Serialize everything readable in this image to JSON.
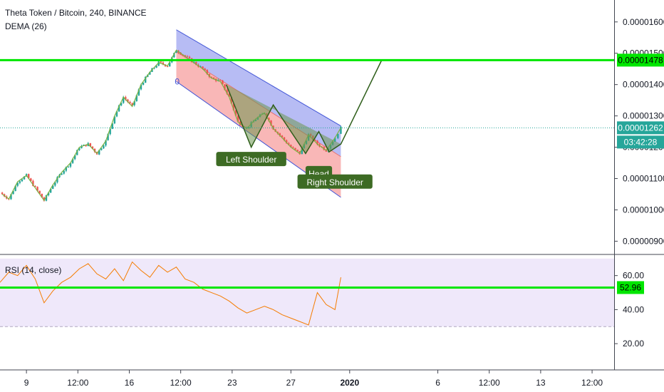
{
  "header": {
    "title": "Theta Token / Bitcoin, 240, BINANCE",
    "indicator": "DEMA (26)",
    "rsi_label": "RSI (14, close)"
  },
  "colors": {
    "up": "#26a69a",
    "down": "#ef5350",
    "dema": "#7cb342",
    "level_line": "#00e600",
    "channel_upper": "#4054d6",
    "channel_upper_fill": "rgba(96,106,230,0.45)",
    "channel_lower_fill": "rgba(242,96,96,0.45)",
    "pattern_fill": "rgba(110,150,80,0.55)",
    "pattern_line": "#2e5e1a",
    "rsi_line": "#f57c00",
    "rsi_band": "rgba(210,190,240,0.35)",
    "label_bg": "#3d6b24"
  },
  "chart_data": [
    {
      "type": "candlestick",
      "title": "Theta Token / Bitcoin, 240, BINANCE",
      "y_tick_labels": [
        "0.00001600",
        "0.00001500",
        "0.00001400",
        "0.00001300",
        "0.00001200",
        "0.00001100",
        "0.00001000",
        "0.00000900"
      ],
      "ylim": [
        8.6e-06,
        1.67e-05
      ],
      "x_tick_labels": [
        "9",
        "12:00",
        "16",
        "12:00",
        "23",
        "27",
        "2020",
        "6",
        "12:00",
        "13",
        "12:00"
      ],
      "x_tick_days": [
        9,
        12.5,
        16,
        19.5,
        23,
        27,
        31,
        37,
        40.5,
        44,
        47.5
      ],
      "xlim": [
        7.2,
        49
      ],
      "price_path": [
        {
          "day": 7.2,
          "price": 1.055e-05
        },
        {
          "day": 7.8,
          "price": 1.035e-05
        },
        {
          "day": 8.4,
          "price": 1.09e-05
        },
        {
          "day": 9.0,
          "price": 1.11e-05
        },
        {
          "day": 9.6,
          "price": 1.07e-05
        },
        {
          "day": 10.2,
          "price": 1.03e-05
        },
        {
          "day": 10.8,
          "price": 1.08e-05
        },
        {
          "day": 11.4,
          "price": 1.12e-05
        },
        {
          "day": 12.0,
          "price": 1.15e-05
        },
        {
          "day": 12.6,
          "price": 1.2e-05
        },
        {
          "day": 13.2,
          "price": 1.21e-05
        },
        {
          "day": 13.8,
          "price": 1.18e-05
        },
        {
          "day": 14.4,
          "price": 1.22e-05
        },
        {
          "day": 15.0,
          "price": 1.3e-05
        },
        {
          "day": 15.6,
          "price": 1.36e-05
        },
        {
          "day": 16.2,
          "price": 1.33e-05
        },
        {
          "day": 16.8,
          "price": 1.4e-05
        },
        {
          "day": 17.4,
          "price": 1.44e-05
        },
        {
          "day": 18.0,
          "price": 1.47e-05
        },
        {
          "day": 18.6,
          "price": 1.46e-05
        },
        {
          "day": 19.2,
          "price": 1.51e-05
        },
        {
          "day": 19.8,
          "price": 1.49e-05
        },
        {
          "day": 20.4,
          "price": 1.47e-05
        },
        {
          "day": 21.0,
          "price": 1.45e-05
        },
        {
          "day": 21.6,
          "price": 1.42e-05
        },
        {
          "day": 22.2,
          "price": 1.41e-05
        },
        {
          "day": 22.8,
          "price": 1.36e-05
        },
        {
          "day": 23.4,
          "price": 1.28e-05
        },
        {
          "day": 24.0,
          "price": 1.26e-05
        },
        {
          "day": 24.6,
          "price": 1.29e-05
        },
        {
          "day": 25.2,
          "price": 1.31e-05
        },
        {
          "day": 25.8,
          "price": 1.26e-05
        },
        {
          "day": 26.4,
          "price": 1.23e-05
        },
        {
          "day": 27.0,
          "price": 1.2e-05
        },
        {
          "day": 27.6,
          "price": 1.18e-05
        },
        {
          "day": 28.2,
          "price": 1.24e-05
        },
        {
          "day": 28.8,
          "price": 1.21e-05
        },
        {
          "day": 29.4,
          "price": 1.19e-05
        },
        {
          "day": 30.0,
          "price": 1.23e-05
        },
        {
          "day": 30.4,
          "price": 1.262e-05
        }
      ],
      "current_price_label": "0.00001262",
      "countdown_label": "03:42:28",
      "level_line": {
        "price": 1.478e-05,
        "label": "0.00001478"
      },
      "annotations": [
        {
          "text": "0",
          "day": 19.1,
          "price": 1.4e-05
        },
        {
          "text": "Left Shoulder",
          "day": 24.3,
          "price": 1.16e-05
        },
        {
          "text": "Head",
          "day": 28.9,
          "price": 1.115e-05
        },
        {
          "text": "Right Shoulder",
          "day": 30.0,
          "price": 1.088e-05
        }
      ],
      "regression_channel": {
        "start_day": 19.2,
        "end_day": 30.4,
        "upper": [
          1.575e-05,
          1.268e-05
        ],
        "mid": [
          1.505e-05,
          1.17e-05
        ],
        "lower": [
          1.41e-05,
          1.04e-05
        ]
      },
      "head_shoulders_points": [
        {
          "day": 22.6,
          "price": 1.4e-05
        },
        {
          "day": 24.3,
          "price": 1.2e-05
        },
        {
          "day": 25.8,
          "price": 1.335e-05
        },
        {
          "day": 28.0,
          "price": 1.18e-05
        },
        {
          "day": 28.9,
          "price": 1.25e-05
        },
        {
          "day": 29.6,
          "price": 1.185e-05
        },
        {
          "day": 30.4,
          "price": 1.21e-05
        },
        {
          "day": 33.2,
          "price": 1.48e-05
        }
      ]
    },
    {
      "type": "line",
      "title": "RSI (14, close)",
      "y_tick_labels": [
        "60.00",
        "40.00",
        "20.00"
      ],
      "ylim": [
        5,
        72
      ],
      "xlim": [
        7.2,
        49
      ],
      "level_line": {
        "value": 52.96,
        "label": "52.96"
      },
      "band": [
        30,
        70
      ],
      "x": [
        7.2,
        7.8,
        8.4,
        9.0,
        9.6,
        10.2,
        10.8,
        11.4,
        12.0,
        12.6,
        13.2,
        13.8,
        14.4,
        15.0,
        15.6,
        16.2,
        16.8,
        17.4,
        18.0,
        18.6,
        19.2,
        19.8,
        20.4,
        21.0,
        21.6,
        22.2,
        22.8,
        23.4,
        24.0,
        24.6,
        25.2,
        25.8,
        26.4,
        27.0,
        27.6,
        28.2,
        28.8,
        29.4,
        30.0,
        30.4
      ],
      "values": [
        56,
        62,
        60,
        66,
        58,
        44,
        51,
        56,
        59,
        64,
        67,
        61,
        58,
        64,
        57,
        68,
        63,
        59,
        66,
        62,
        65,
        58,
        56,
        52,
        50,
        48,
        45,
        41,
        38,
        40,
        42,
        40,
        37,
        35,
        33,
        31,
        50,
        43,
        40,
        59
      ]
    }
  ]
}
